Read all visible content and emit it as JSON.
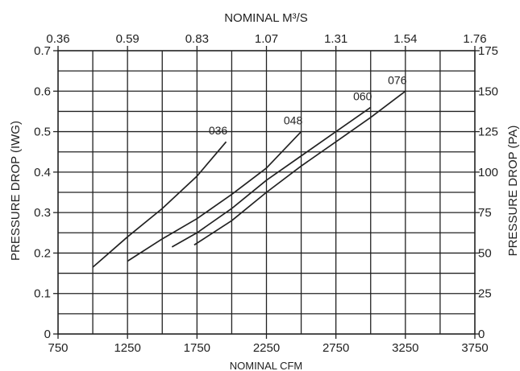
{
  "chart_data": {
    "type": "line",
    "x_axis": {
      "label": "NOMINAL CFM",
      "range": [
        750,
        3750
      ],
      "ticks": [
        "750",
        "1250",
        "1750",
        "2250",
        "2750",
        "3250",
        "3750"
      ]
    },
    "x_axis_top": {
      "label": "NOMINAL M³/S",
      "ticks": [
        "0.36",
        "0.59",
        "0.83",
        "1.07",
        "1.31",
        "1.54",
        "1.76"
      ]
    },
    "y_axis_left": {
      "label": "PRESSURE DROP (IWG)",
      "range": [
        0,
        0.7
      ],
      "ticks": [
        "0",
        "0.1",
        "0.2",
        "0.3",
        "0.4",
        "0.5",
        "0.6",
        "0.7"
      ]
    },
    "y_axis_right": {
      "label": "PRESSURE DROP (PA)",
      "ticks": [
        "0",
        "25",
        "50",
        "75",
        "100",
        "125",
        "150",
        "175"
      ]
    },
    "grid": true,
    "series": [
      {
        "name": "036",
        "points": [
          [
            1000,
            0.165
          ],
          [
            1250,
            0.24
          ],
          [
            1500,
            0.31
          ],
          [
            1750,
            0.39
          ],
          [
            1960,
            0.475
          ]
        ]
      },
      {
        "name": "048",
        "points": [
          [
            1250,
            0.18
          ],
          [
            1500,
            0.235
          ],
          [
            1750,
            0.285
          ],
          [
            2000,
            0.345
          ],
          [
            2250,
            0.41
          ],
          [
            2500,
            0.5
          ]
        ]
      },
      {
        "name": "060",
        "points": [
          [
            1570,
            0.215
          ],
          [
            1750,
            0.25
          ],
          [
            2000,
            0.31
          ],
          [
            2250,
            0.38
          ],
          [
            2500,
            0.44
          ],
          [
            2750,
            0.5
          ],
          [
            3000,
            0.56
          ]
        ]
      },
      {
        "name": "076",
        "points": [
          [
            1730,
            0.22
          ],
          [
            2000,
            0.28
          ],
          [
            2250,
            0.35
          ],
          [
            2500,
            0.415
          ],
          [
            2750,
            0.475
          ],
          [
            3000,
            0.535
          ],
          [
            3250,
            0.6
          ]
        ]
      }
    ]
  }
}
